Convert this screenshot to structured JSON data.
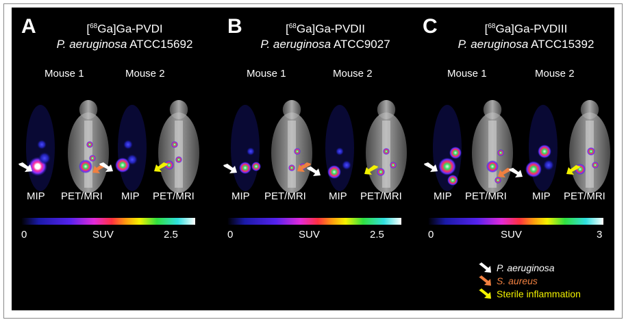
{
  "panels": [
    {
      "letter": "A",
      "title_prefix": "[",
      "title_sup": "68",
      "title_rest": "Ga]Ga-PVDI",
      "strain_italic": "P. aeruginosa",
      "strain_code": "ATCC15692",
      "mouse1": "Mouse 1",
      "mouse2": "Mouse 2",
      "mip": "MIP",
      "petmri": "PET/MRI",
      "scale_min": "0",
      "scale_label": "SUV",
      "scale_max": "2.5"
    },
    {
      "letter": "B",
      "title_prefix": "[",
      "title_sup": "68",
      "title_rest": "Ga]Ga-PVDII",
      "strain_italic": "P. aeruginosa",
      "strain_code": "ATCC9027",
      "mouse1": "Mouse 1",
      "mouse2": "Mouse 2",
      "mip": "MIP",
      "petmri": "PET/MRI",
      "scale_min": "0",
      "scale_label": "SUV",
      "scale_max": "2.5"
    },
    {
      "letter": "C",
      "title_prefix": "[",
      "title_sup": "68",
      "title_rest": "Ga]Ga-PVDIII",
      "strain_italic": "P. aeruginosa",
      "strain_code": "ATCC15392",
      "mouse1": "Mouse 1",
      "mouse2": "Mouse 2",
      "mip": "MIP",
      "petmri": "PET/MRI",
      "scale_min": "0",
      "scale_label": "SUV",
      "scale_max": "3"
    }
  ],
  "legend": [
    {
      "label": "P. aeruginosa",
      "color": "#ffffff",
      "italic": true
    },
    {
      "label": "S. aureus",
      "color": "#f08040",
      "italic": true
    },
    {
      "label": "Sterile inflammation",
      "color": "#f2f200",
      "italic": false
    }
  ],
  "colors": {
    "white_arrow": "#ffffff",
    "orange_arrow": "#f08040",
    "yellow_arrow": "#f2f200",
    "background": "#000000"
  }
}
